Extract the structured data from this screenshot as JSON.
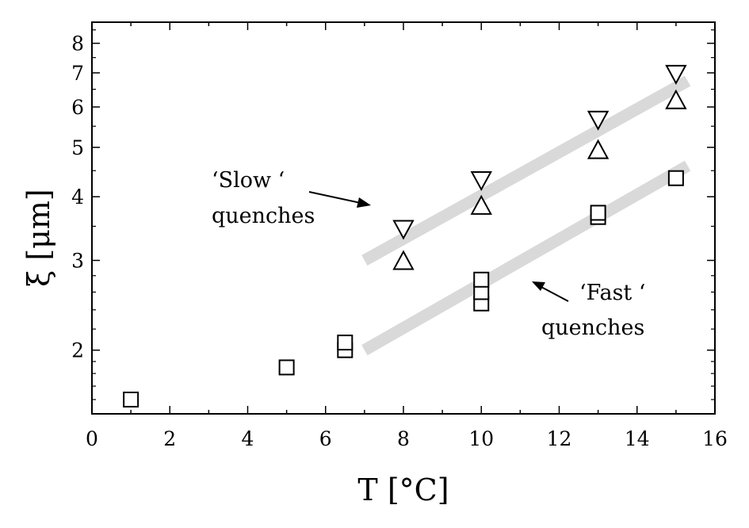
{
  "chart_data": {
    "type": "scatter",
    "title": "",
    "xlabel": "T [°C]",
    "ylabel": "ξ [μm]",
    "xlim": [
      0,
      16
    ],
    "ylim": [
      1.5,
      8.8
    ],
    "yscale": "log",
    "grid": false,
    "x_ticks": [
      0,
      2,
      4,
      6,
      8,
      10,
      12,
      14,
      16
    ],
    "x_tick_labels": [
      "0",
      "2",
      "4",
      "6",
      "8",
      "10",
      "12",
      "14",
      "16"
    ],
    "y_ticks": [
      2,
      3,
      4,
      5,
      6,
      7,
      8
    ],
    "y_tick_labels": [
      "2",
      "3",
      "4",
      "5",
      "6",
      "7",
      "8"
    ],
    "series": [
      {
        "marker": "square",
        "x": [
          1,
          5,
          6.5,
          6.5,
          10,
          10,
          10,
          13,
          13,
          15
        ],
        "y": [
          1.6,
          1.85,
          2.0,
          2.07,
          2.47,
          2.6,
          2.75,
          3.65,
          3.72,
          4.35
        ]
      },
      {
        "marker": "triangle-up",
        "x": [
          8,
          10,
          13,
          15
        ],
        "y": [
          3.0,
          3.85,
          4.95,
          6.2
        ]
      },
      {
        "marker": "triangle-down",
        "x": [
          8,
          10,
          13,
          15
        ],
        "y": [
          3.45,
          4.3,
          5.65,
          6.95
        ]
      }
    ],
    "fit_lines": [
      {
        "x": [
          7,
          15.3
        ],
        "y": [
          3.0,
          6.75
        ],
        "color": "#d9d9d9"
      },
      {
        "x": [
          7,
          15.3
        ],
        "y": [
          2.0,
          4.6
        ],
        "color": "#d9d9d9"
      }
    ],
    "annotations": [
      {
        "lines": [
          "‘Slow ‘",
          "quenches"
        ]
      },
      {
        "lines": [
          "‘Fast ‘",
          "quenches"
        ]
      }
    ]
  }
}
